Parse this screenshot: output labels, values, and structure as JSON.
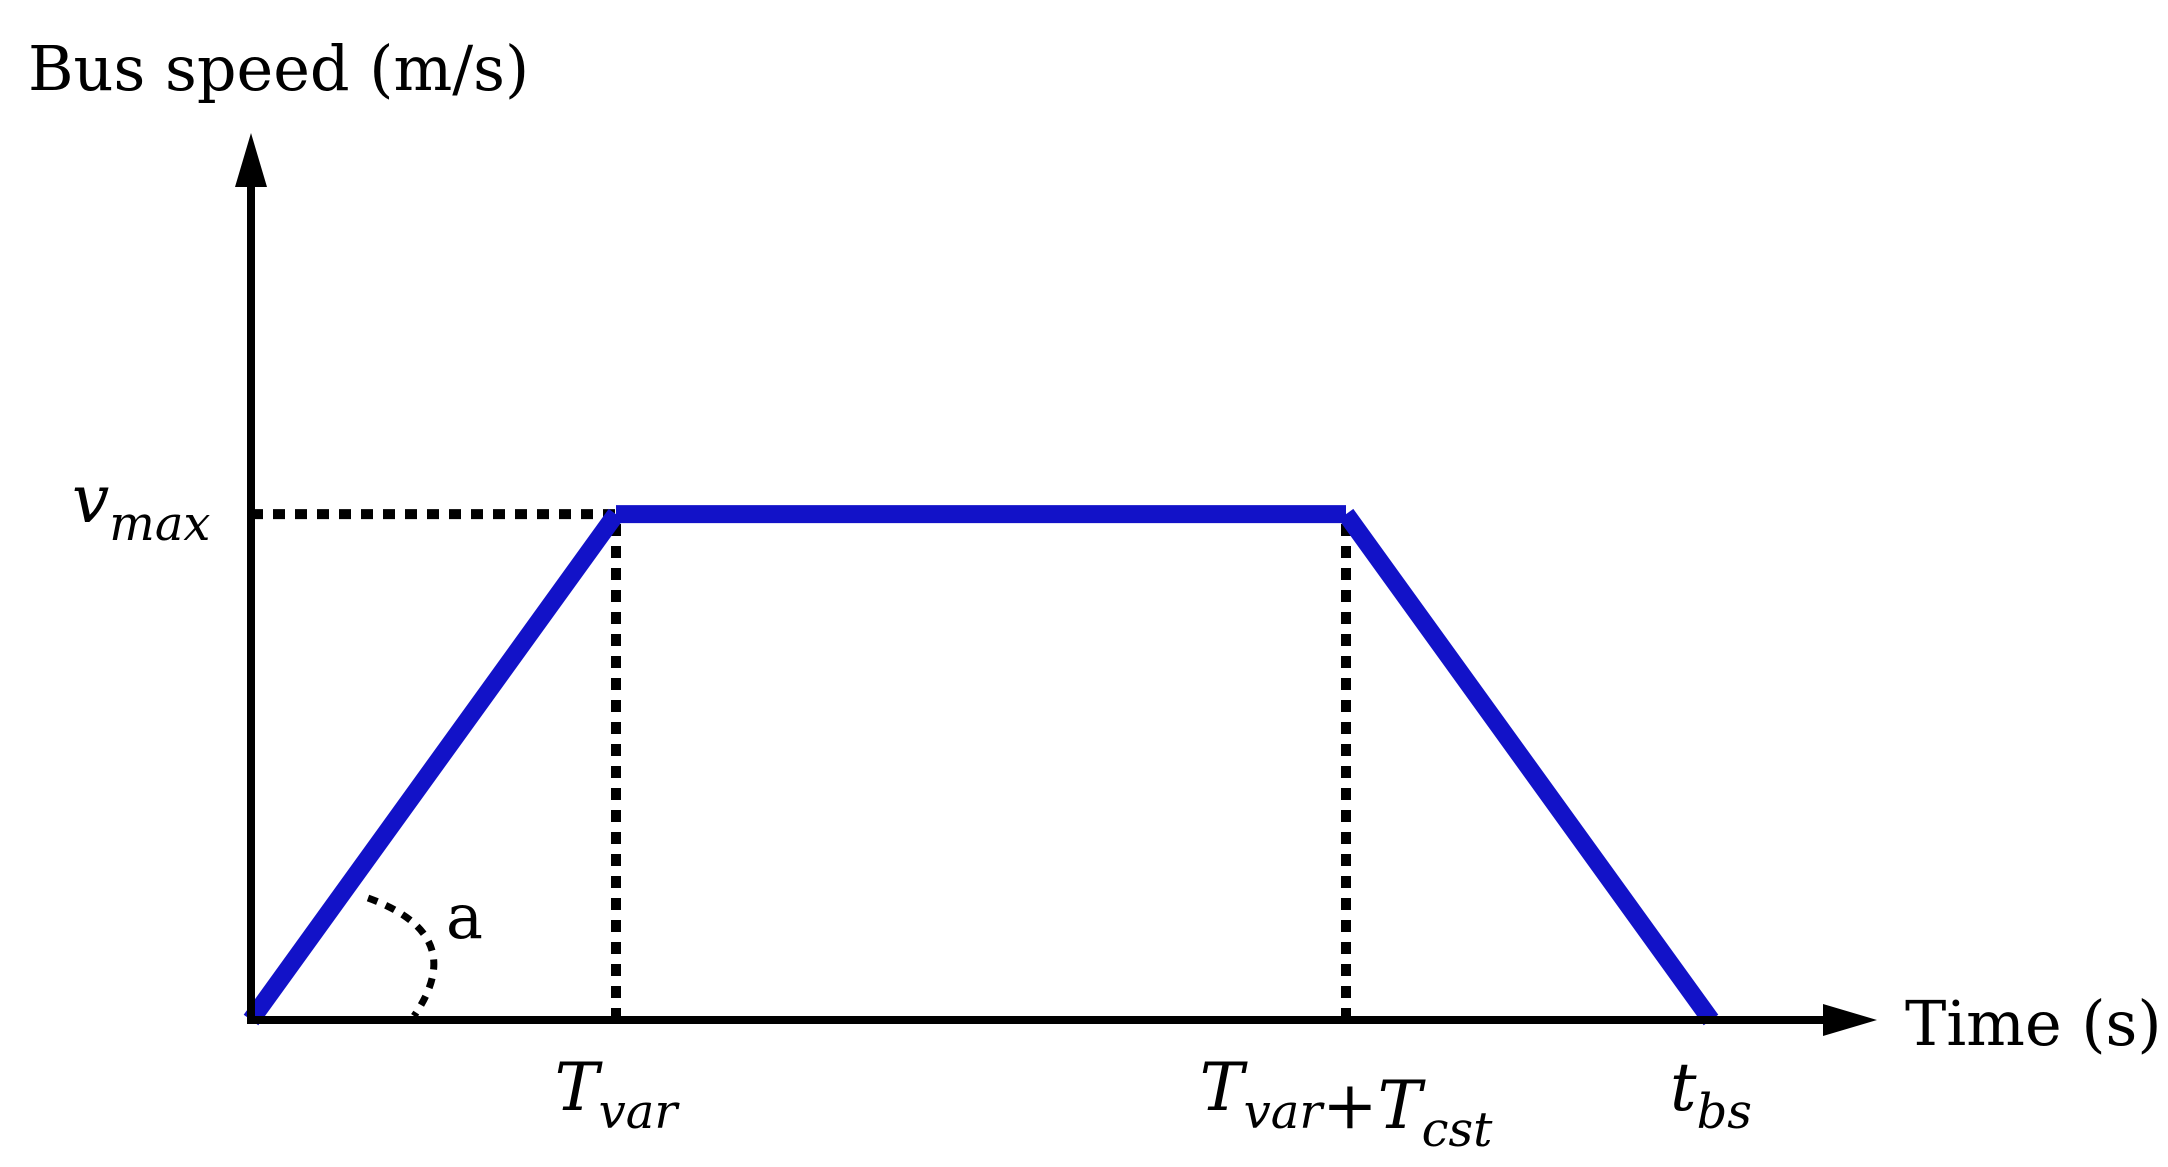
{
  "chart_data": {
    "type": "line",
    "ylabel": "Bus speed (m/s)",
    "xlabel": "Time (s)",
    "series": [
      {
        "x": [
          0,
          1,
          3,
          4
        ],
        "y": [
          0,
          1,
          1,
          0
        ]
      }
    ],
    "xlim": [
      0,
      4.4
    ],
    "ylim": [
      0,
      1.72
    ],
    "line_color": "#1212C8",
    "axis_color": "#000000",
    "guides": [
      {
        "kind": "horizontal",
        "y": 1,
        "x_from": 0,
        "x_to": 1
      },
      {
        "kind": "vertical",
        "x": 1,
        "y_from": 0,
        "y_to": 1
      },
      {
        "kind": "vertical",
        "x": 3,
        "y_from": 0,
        "y_to": 1
      }
    ],
    "y_tick": {
      "value": 1,
      "base": "v",
      "sub": "max"
    },
    "x_ticks": [
      {
        "value": 1,
        "parts": [
          {
            "t": "T",
            "sub": "var"
          }
        ]
      },
      {
        "value": 3,
        "parts": [
          {
            "t": "T",
            "sub": "var"
          },
          {
            "t": "+"
          },
          {
            "t": "T",
            "sub": "cst"
          }
        ]
      },
      {
        "value": 4,
        "parts": [
          {
            "t": "t",
            "sub": "bs"
          }
        ]
      }
    ],
    "angle_annotation": {
      "label": "a"
    }
  }
}
